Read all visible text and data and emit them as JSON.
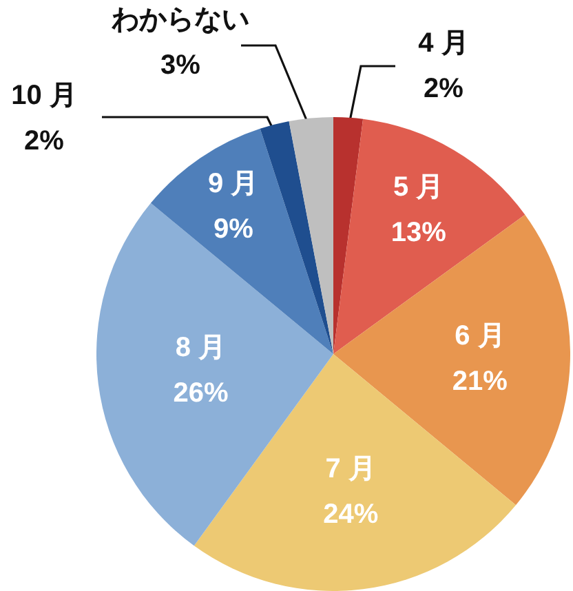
{
  "chart_data": {
    "type": "pie",
    "categories": [
      "4 月",
      "5 月",
      "6 月",
      "7 月",
      "8 月",
      "9 月",
      "10 月",
      "わからない"
    ],
    "values": [
      2,
      13,
      21,
      24,
      26,
      9,
      2,
      3
    ],
    "colors": [
      "#b8312e",
      "#e05d4f",
      "#e8964f",
      "#edc973",
      "#8cb0d8",
      "#4f7fba",
      "#1f4e8f",
      "#bfbfbf"
    ],
    "value_labels": [
      "2%",
      "13%",
      "21%",
      "24%",
      "26%",
      "9%",
      "2%",
      "3%"
    ]
  }
}
